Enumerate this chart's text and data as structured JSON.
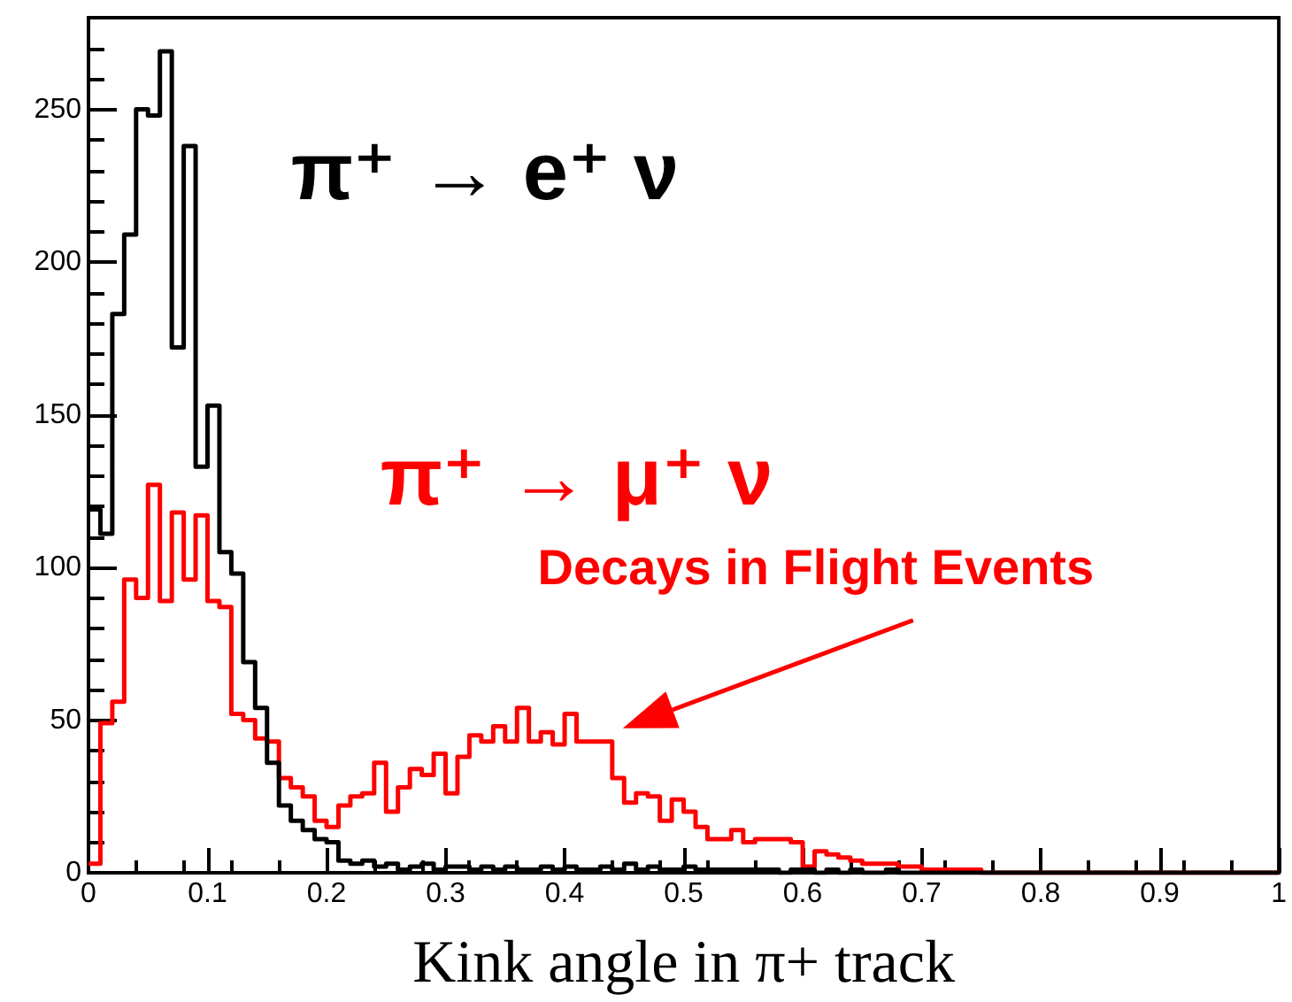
{
  "chart_data": {
    "type": "histogram",
    "xlabel": "Kink angle in π+ track",
    "bins": [
      0,
      0.01,
      0.02,
      0.03,
      0.04,
      0.05,
      0.06,
      0.07,
      0.08,
      0.09,
      0.1,
      0.11,
      0.12,
      0.13,
      0.14,
      0.15,
      0.16,
      0.17,
      0.18,
      0.19,
      0.2,
      0.21,
      0.22,
      0.23,
      0.24,
      0.25,
      0.26,
      0.27,
      0.28,
      0.29,
      0.3,
      0.31,
      0.32,
      0.33,
      0.34,
      0.35,
      0.36,
      0.37,
      0.38,
      0.39,
      0.4,
      0.41,
      0.42,
      0.43,
      0.44,
      0.45,
      0.46,
      0.47,
      0.48,
      0.49,
      0.5,
      0.51,
      0.52,
      0.53,
      0.54,
      0.55,
      0.56,
      0.57,
      0.58,
      0.59,
      0.6,
      0.61,
      0.62,
      0.63,
      0.64,
      0.65,
      0.66,
      0.67,
      0.68,
      0.69,
      0.7,
      0.71,
      0.72,
      0.73,
      0.74,
      0.75,
      0.76,
      0.77,
      0.78,
      0.79,
      0.8,
      0.81,
      0.82,
      0.83,
      0.84,
      0.85,
      0.86,
      0.87,
      0.88,
      0.89,
      0.9,
      0.91,
      0.92,
      0.93,
      0.94,
      0.95,
      0.96,
      0.97,
      0.98,
      0.99,
      1
    ],
    "series": [
      {
        "name": "π⁺ → e⁺ ν",
        "color": "#000000",
        "values": [
          119,
          111,
          183,
          209,
          250,
          248,
          269,
          172,
          238,
          133,
          153,
          105,
          98,
          69,
          54,
          36,
          22,
          17,
          14,
          11,
          10,
          4,
          3,
          4,
          2,
          3,
          1,
          2,
          3,
          1,
          2,
          2,
          1,
          2,
          1,
          2,
          1,
          1,
          2,
          1,
          2,
          1,
          1,
          2,
          1,
          3,
          1,
          2,
          1,
          1,
          2,
          1,
          1,
          1,
          1,
          1,
          1,
          1,
          0,
          1,
          1,
          0,
          1,
          0,
          1,
          0,
          0,
          1,
          0,
          0,
          0,
          0,
          0,
          0,
          0,
          0,
          0,
          0,
          0,
          0,
          0,
          0,
          0,
          0,
          0,
          0,
          0,
          0,
          0,
          0,
          0,
          0,
          0,
          0,
          0,
          0,
          0,
          0,
          0,
          0
        ]
      },
      {
        "name": "π⁺ → μ⁺ ν",
        "color": "#ff0000",
        "values": [
          3,
          49,
          56,
          96,
          90,
          127,
          89,
          118,
          96,
          117,
          89,
          87,
          52,
          50,
          44,
          43,
          31,
          28,
          25,
          17,
          15,
          22,
          25,
          26,
          36,
          20,
          28,
          34,
          32,
          39,
          26,
          38,
          45,
          43,
          48,
          43,
          54,
          43,
          46,
          42,
          52,
          43,
          43,
          43,
          31,
          23,
          26,
          25,
          17,
          24,
          20,
          15,
          11,
          11,
          14,
          10,
          11,
          11,
          11,
          10,
          2,
          7,
          6,
          5,
          4,
          3,
          3,
          3,
          2,
          2,
          1,
          1,
          1,
          1,
          1,
          0,
          0,
          0,
          0,
          0,
          0,
          0,
          0,
          0,
          0,
          0,
          0,
          0,
          0,
          0,
          0,
          0,
          0,
          0,
          0,
          0,
          0,
          0,
          0,
          0
        ]
      }
    ],
    "annotations": [
      {
        "text": "Decays in Flight Events",
        "x": 0.44,
        "y": 45
      }
    ],
    "xlim": [
      0,
      1
    ],
    "xticks": [
      0,
      0.1,
      0.2,
      0.3,
      0.4,
      0.5,
      0.6,
      0.7,
      0.8,
      0.9,
      1
    ],
    "ylim": [
      0,
      280
    ],
    "yticks": [
      0,
      50,
      100,
      150,
      200,
      250
    ],
    "grid": false,
    "legend": false
  }
}
